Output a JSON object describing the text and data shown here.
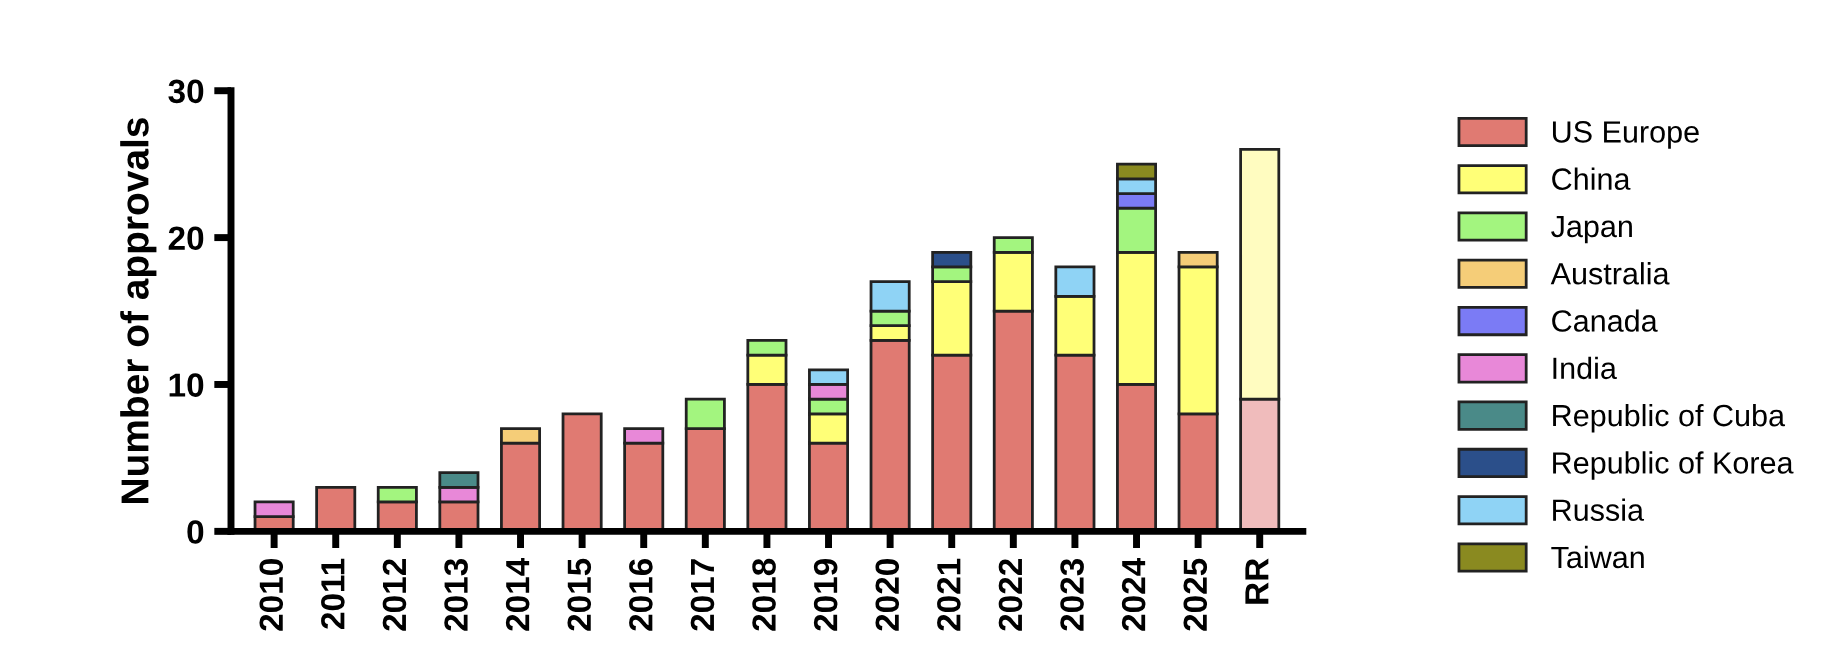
{
  "chart_data": {
    "type": "bar",
    "stacked": true,
    "ylabel": "Number of approvals",
    "categories": [
      "2010",
      "2011",
      "2012",
      "2013",
      "2014",
      "2015",
      "2016",
      "2017",
      "2018",
      "2019",
      "2020",
      "2021",
      "2022",
      "2023",
      "2024",
      "2025",
      "RR"
    ],
    "ylim": [
      0,
      30
    ],
    "yticks": [
      0,
      10,
      20,
      30
    ],
    "grid": false,
    "legend": "right",
    "series": [
      {
        "name": "US Europe",
        "color": "#e07a72",
        "colors": [
          "#e07a72",
          "#e07a72",
          "#e07a72",
          "#e07a72",
          "#e07a72",
          "#e07a72",
          "#e07a72",
          "#e07a72",
          "#e07a72",
          "#e07a72",
          "#e07a72",
          "#e07a72",
          "#e07a72",
          "#e07a72",
          "#e07a72",
          "#e07a72",
          "#f0bcbc"
        ],
        "values": [
          1,
          3,
          2,
          2,
          6,
          8,
          6,
          7,
          10,
          6,
          13,
          12,
          15,
          12,
          10,
          8,
          9
        ]
      },
      {
        "name": "China",
        "color": "#ffff77",
        "colors": [
          "#ffff77",
          "#ffff77",
          "#ffff77",
          "#ffff77",
          "#ffff77",
          "#ffff77",
          "#ffff77",
          "#ffff77",
          "#ffff77",
          "#ffff77",
          "#ffff77",
          "#ffff77",
          "#ffff77",
          "#ffff77",
          "#ffff77",
          "#ffff77",
          "#fffcc0"
        ],
        "values": [
          0,
          0,
          0,
          0,
          0,
          0,
          0,
          0,
          2,
          2,
          1,
          5,
          4,
          4,
          9,
          10,
          17
        ]
      },
      {
        "name": "Japan",
        "color": "#a3f57f",
        "values": [
          0,
          0,
          1,
          0,
          0,
          0,
          0,
          2,
          1,
          1,
          1,
          1,
          1,
          0,
          3,
          0,
          0
        ]
      },
      {
        "name": "Australia",
        "color": "#f5cd78",
        "values": [
          0,
          0,
          0,
          0,
          1,
          0,
          0,
          0,
          0,
          0,
          0,
          0,
          0,
          0,
          0,
          1,
          0
        ]
      },
      {
        "name": "Canada",
        "color": "#7b7bf5",
        "values": [
          0,
          0,
          0,
          0,
          0,
          0,
          0,
          0,
          0,
          0,
          0,
          0,
          0,
          0,
          1,
          0,
          0
        ]
      },
      {
        "name": "India",
        "color": "#e888d8",
        "values": [
          1,
          0,
          0,
          1,
          0,
          0,
          1,
          0,
          0,
          1,
          0,
          0,
          0,
          0,
          0,
          0,
          0
        ]
      },
      {
        "name": "Republic of Cuba",
        "color": "#4a8a88",
        "values": [
          0,
          0,
          0,
          1,
          0,
          0,
          0,
          0,
          0,
          0,
          0,
          0,
          0,
          0,
          0,
          0,
          0
        ]
      },
      {
        "name": "Republic of Korea",
        "color": "#2b4f8a",
        "values": [
          0,
          0,
          0,
          0,
          0,
          0,
          0,
          0,
          0,
          0,
          0,
          1,
          0,
          0,
          0,
          0,
          0
        ]
      },
      {
        "name": "Russia",
        "color": "#8fd3f5",
        "values": [
          0,
          0,
          0,
          0,
          0,
          0,
          0,
          0,
          0,
          1,
          2,
          0,
          0,
          2,
          1,
          0,
          0
        ]
      },
      {
        "name": "Taiwan",
        "color": "#8a8a20",
        "values": [
          0,
          0,
          0,
          0,
          0,
          0,
          0,
          0,
          0,
          0,
          0,
          0,
          0,
          0,
          1,
          0,
          0
        ]
      }
    ]
  }
}
